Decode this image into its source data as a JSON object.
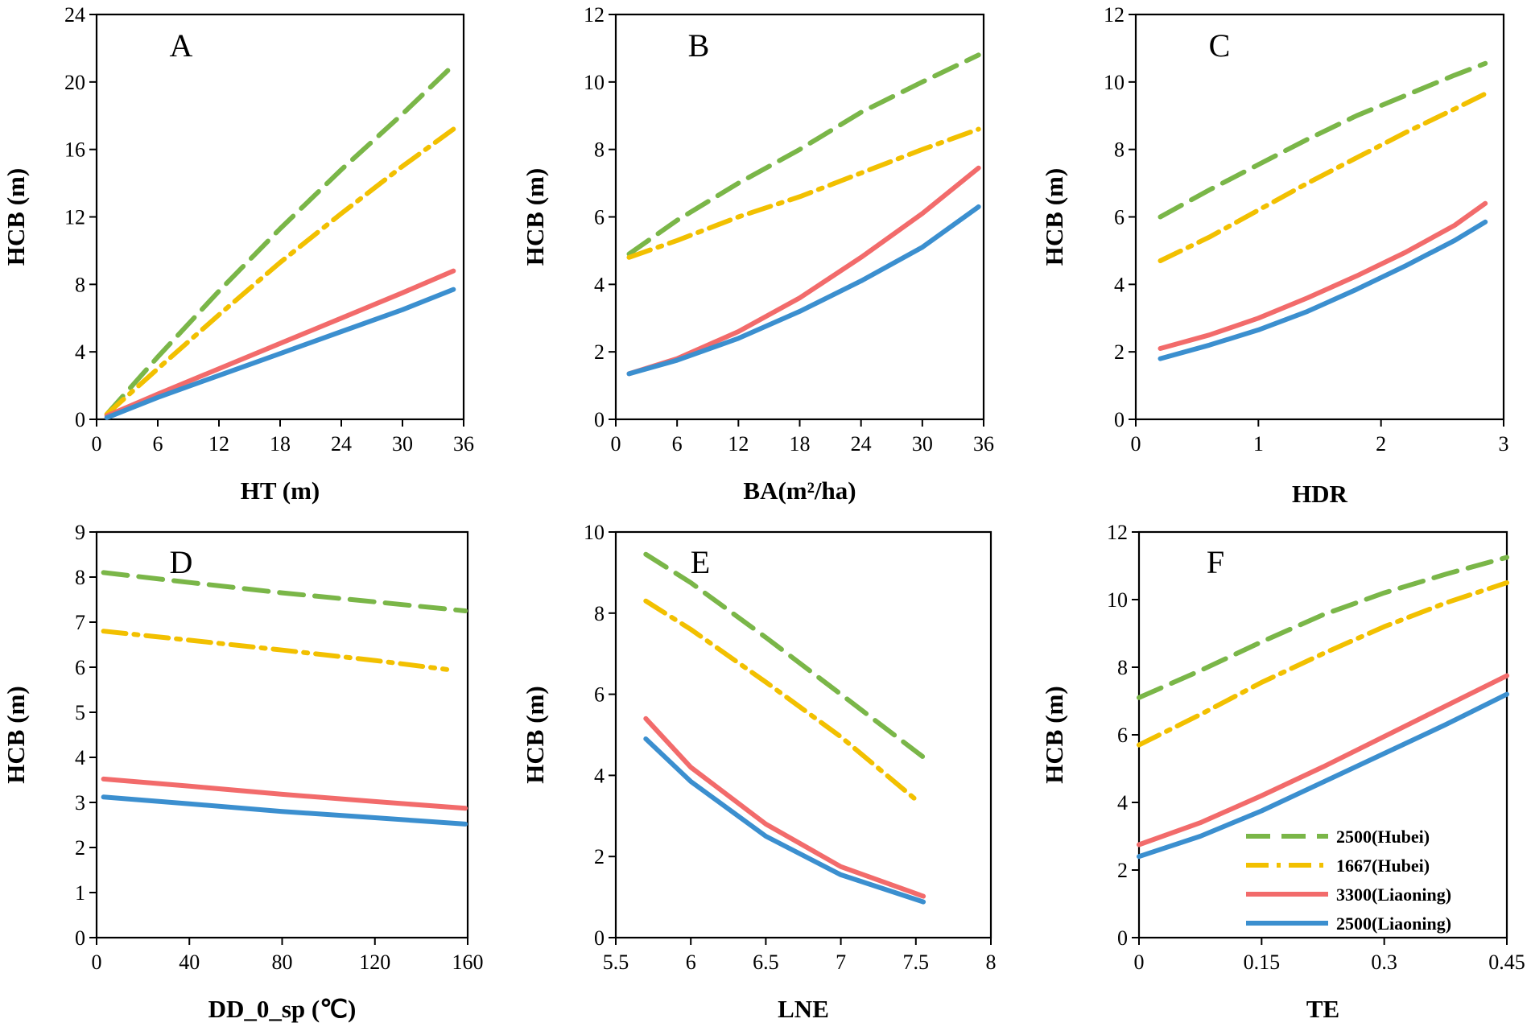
{
  "figure": {
    "series_styles": {
      "2500(Hubei)": {
        "color": "#7ab648",
        "dash": "long-dash"
      },
      "1667(Hubei)": {
        "color": "#f2c000",
        "dash": "dash-dot"
      },
      "3300(Liaoning)": {
        "color": "#f26b6b",
        "dash": "solid"
      },
      "2500(Liaoning)": {
        "color": "#3b8fcf",
        "dash": "solid"
      }
    },
    "legend": [
      "2500(Hubei)",
      "1667(Hubei)",
      "3300(Liaoning)",
      "2500(Liaoning)"
    ]
  },
  "chart_data": [
    {
      "type": "line",
      "panel": "A",
      "xlabel": "HT (m)",
      "ylabel": "HCB (m)",
      "xlim": [
        0,
        36
      ],
      "ylim": [
        0,
        24
      ],
      "xticks": [
        0,
        6,
        12,
        18,
        24,
        30,
        36
      ],
      "xtick_labels": [
        "0",
        "6",
        "12",
        "18",
        "24",
        "30",
        "36"
      ],
      "yticks": [
        0,
        4,
        8,
        12,
        16,
        20,
        24
      ],
      "ytick_labels": [
        "0",
        "4",
        "8",
        "12",
        "16",
        "20",
        "24"
      ],
      "series": [
        {
          "name": "2500(Hubei)",
          "x": [
            1,
            6,
            12,
            18,
            24,
            30,
            35
          ],
          "y": [
            0.3,
            3.7,
            7.6,
            11.3,
            14.8,
            18.1,
            21
          ]
        },
        {
          "name": "1667(Hubei)",
          "x": [
            1,
            6,
            12,
            18,
            24,
            30,
            35
          ],
          "y": [
            0.3,
            3.0,
            6.2,
            9.3,
            12.2,
            15.0,
            17.2
          ]
        },
        {
          "name": "3300(Liaoning)",
          "x": [
            1,
            6,
            12,
            18,
            24,
            30,
            35
          ],
          "y": [
            0.2,
            1.5,
            3.0,
            4.5,
            6.0,
            7.5,
            8.8
          ]
        },
        {
          "name": "2500(Liaoning)",
          "x": [
            1,
            6,
            12,
            18,
            24,
            30,
            35
          ],
          "y": [
            0.1,
            1.3,
            2.6,
            3.9,
            5.2,
            6.5,
            7.7
          ]
        }
      ]
    },
    {
      "type": "line",
      "panel": "B",
      "xlabel": "BA(m²/ha)",
      "ylabel": "HCB (m)",
      "xlim": [
        0,
        36
      ],
      "ylim": [
        0,
        12
      ],
      "xticks": [
        0,
        6,
        12,
        18,
        24,
        30,
        36
      ],
      "xtick_labels": [
        "0",
        "6",
        "12",
        "18",
        "24",
        "30",
        "36"
      ],
      "yticks": [
        0,
        2,
        4,
        6,
        8,
        10,
        12
      ],
      "ytick_labels": [
        "0",
        "2",
        "4",
        "6",
        "8",
        "10",
        "12"
      ],
      "series": [
        {
          "name": "2500(Hubei)",
          "x": [
            1.3,
            6,
            12,
            18,
            24,
            30,
            35.5
          ],
          "y": [
            4.9,
            5.9,
            7.0,
            8.0,
            9.1,
            10.0,
            10.8
          ]
        },
        {
          "name": "1667(Hubei)",
          "x": [
            1.3,
            6,
            12,
            18,
            24,
            30,
            35.5
          ],
          "y": [
            4.8,
            5.3,
            6.0,
            6.6,
            7.3,
            8.0,
            8.6
          ]
        },
        {
          "name": "3300(Liaoning)",
          "x": [
            1.3,
            6,
            12,
            18,
            24,
            30,
            35.5
          ],
          "y": [
            1.35,
            1.8,
            2.6,
            3.6,
            4.8,
            6.1,
            7.45
          ]
        },
        {
          "name": "2500(Liaoning)",
          "x": [
            1.3,
            6,
            12,
            18,
            24,
            30,
            35.5
          ],
          "y": [
            1.35,
            1.75,
            2.4,
            3.2,
            4.1,
            5.1,
            6.3
          ]
        }
      ]
    },
    {
      "type": "line",
      "panel": "C",
      "xlabel": "HDR",
      "ylabel": "HCB (m)",
      "xlim": [
        0,
        3
      ],
      "ylim": [
        0,
        12
      ],
      "xticks": [
        0,
        1,
        2,
        3
      ],
      "xtick_labels": [
        "0",
        "1",
        "2",
        "3"
      ],
      "yticks": [
        0,
        2,
        4,
        6,
        8,
        10,
        12
      ],
      "ytick_labels": [
        "0",
        "2",
        "4",
        "6",
        "8",
        "10",
        "12"
      ],
      "series": [
        {
          "name": "2500(Hubei)",
          "x": [
            0.2,
            0.6,
            1.0,
            1.4,
            1.8,
            2.2,
            2.6,
            2.85
          ],
          "y": [
            6.0,
            6.8,
            7.55,
            8.3,
            9.0,
            9.6,
            10.2,
            10.55
          ]
        },
        {
          "name": "1667(Hubei)",
          "x": [
            0.2,
            0.6,
            1.0,
            1.4,
            1.8,
            2.2,
            2.6,
            2.85
          ],
          "y": [
            4.7,
            5.4,
            6.2,
            7.0,
            7.75,
            8.5,
            9.2,
            9.65
          ]
        },
        {
          "name": "3300(Liaoning)",
          "x": [
            0.2,
            0.6,
            1.0,
            1.4,
            1.8,
            2.2,
            2.6,
            2.85
          ],
          "y": [
            2.1,
            2.5,
            3.0,
            3.6,
            4.25,
            4.95,
            5.75,
            6.4
          ]
        },
        {
          "name": "2500(Liaoning)",
          "x": [
            0.2,
            0.6,
            1.0,
            1.4,
            1.8,
            2.2,
            2.6,
            2.85
          ],
          "y": [
            1.8,
            2.2,
            2.65,
            3.2,
            3.85,
            4.55,
            5.3,
            5.85
          ]
        }
      ]
    },
    {
      "type": "line",
      "panel": "D",
      "xlabel": "DD_0_sp (℃)",
      "ylabel": "HCB (m)",
      "xlim": [
        0,
        160
      ],
      "ylim": [
        0,
        9
      ],
      "xticks": [
        0,
        40,
        80,
        120,
        160
      ],
      "xtick_labels": [
        "0",
        "40",
        "80",
        "120",
        "160"
      ],
      "yticks": [
        0,
        1,
        2,
        3,
        4,
        5,
        6,
        7,
        8,
        9
      ],
      "ytick_labels": [
        "0",
        "1",
        "2",
        "3",
        "4",
        "5",
        "6",
        "7",
        "8",
        "9"
      ],
      "series": [
        {
          "name": "2500(Hubei)",
          "x": [
            3,
            40,
            80,
            120,
            159
          ],
          "y": [
            8.1,
            7.88,
            7.65,
            7.45,
            7.25
          ]
        },
        {
          "name": "1667(Hubei)",
          "x": [
            3,
            40,
            80,
            120,
            151
          ],
          "y": [
            6.8,
            6.6,
            6.38,
            6.15,
            5.95
          ]
        },
        {
          "name": "3300(Liaoning)",
          "x": [
            3,
            40,
            80,
            120,
            159
          ],
          "y": [
            3.52,
            3.36,
            3.18,
            3.02,
            2.87
          ]
        },
        {
          "name": "2500(Liaoning)",
          "x": [
            3,
            40,
            80,
            120,
            159
          ],
          "y": [
            3.12,
            2.97,
            2.8,
            2.66,
            2.52
          ]
        }
      ]
    },
    {
      "type": "line",
      "panel": "E",
      "xlabel": "LNE",
      "ylabel": "HCB (m)",
      "xlim": [
        5.5,
        8
      ],
      "ylim": [
        0,
        10
      ],
      "xticks": [
        5.5,
        6,
        6.5,
        7,
        7.5,
        8
      ],
      "xtick_labels": [
        "5.5",
        "6",
        "6.5",
        "7",
        "7.5",
        "8"
      ],
      "yticks": [
        0,
        2,
        4,
        6,
        8,
        10
      ],
      "ytick_labels": [
        "0",
        "2",
        "4",
        "6",
        "8",
        "10"
      ],
      "series": [
        {
          "name": "2500(Hubei)",
          "x": [
            5.7,
            6.0,
            6.5,
            7.0,
            7.55
          ],
          "y": [
            9.45,
            8.75,
            7.4,
            6.0,
            4.45
          ]
        },
        {
          "name": "1667(Hubei)",
          "x": [
            5.7,
            6.0,
            6.5,
            7.0,
            7.5
          ],
          "y": [
            8.3,
            7.6,
            6.3,
            4.95,
            3.4
          ]
        },
        {
          "name": "3300(Liaoning)",
          "x": [
            5.7,
            6.0,
            6.5,
            7.0,
            7.55
          ],
          "y": [
            5.4,
            4.2,
            2.8,
            1.75,
            1.02
          ]
        },
        {
          "name": "2500(Liaoning)",
          "x": [
            5.7,
            6.0,
            6.5,
            7.0,
            7.55
          ],
          "y": [
            4.9,
            3.85,
            2.5,
            1.55,
            0.88
          ]
        }
      ]
    },
    {
      "type": "line",
      "panel": "F",
      "xlabel": "TE",
      "ylabel": "HCB (m)",
      "xlim": [
        0,
        0.45
      ],
      "ylim": [
        0,
        12
      ],
      "xticks": [
        0,
        0.15,
        0.3,
        0.45
      ],
      "xtick_labels": [
        "0",
        "0.15",
        "0.3",
        "0.45"
      ],
      "yticks": [
        0,
        2,
        4,
        6,
        8,
        10,
        12
      ],
      "ytick_labels": [
        "0",
        "2",
        "4",
        "6",
        "8",
        "10",
        "12"
      ],
      "legend_position": "bottom-right",
      "series": [
        {
          "name": "2500(Hubei)",
          "x": [
            0,
            0.075,
            0.15,
            0.225,
            0.3,
            0.375,
            0.45
          ],
          "y": [
            7.1,
            7.9,
            8.75,
            9.55,
            10.2,
            10.75,
            11.25
          ]
        },
        {
          "name": "1667(Hubei)",
          "x": [
            0,
            0.075,
            0.15,
            0.225,
            0.3,
            0.375,
            0.45
          ],
          "y": [
            5.7,
            6.6,
            7.55,
            8.4,
            9.2,
            9.9,
            10.5
          ]
        },
        {
          "name": "3300(Liaoning)",
          "x": [
            0,
            0.075,
            0.15,
            0.225,
            0.3,
            0.375,
            0.45
          ],
          "y": [
            2.75,
            3.4,
            4.2,
            5.05,
            5.95,
            6.85,
            7.75
          ]
        },
        {
          "name": "2500(Liaoning)",
          "x": [
            0,
            0.075,
            0.15,
            0.225,
            0.3,
            0.375,
            0.45
          ],
          "y": [
            2.4,
            3.0,
            3.75,
            4.6,
            5.45,
            6.3,
            7.2
          ]
        }
      ]
    }
  ]
}
